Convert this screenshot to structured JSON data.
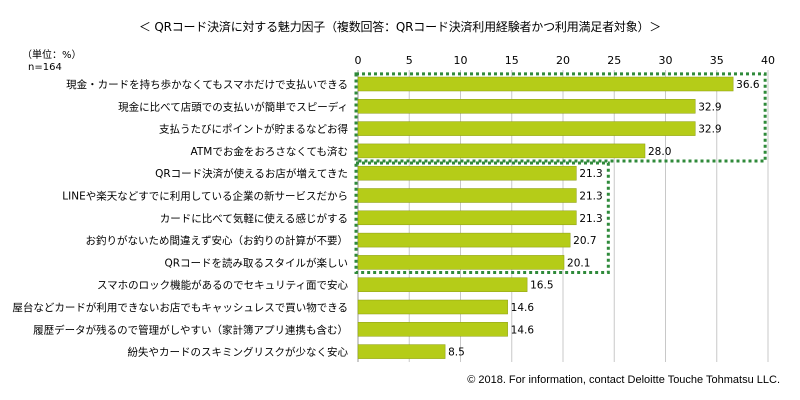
{
  "chart_data": {
    "type": "bar",
    "orientation": "horizontal",
    "title": "＜ QRコード決済に対する魅力因子（複数回答：QRコード決済利用経験者かつ利用満足者対象）＞",
    "unit_label": "（単位：%）",
    "sample_label": "n=164",
    "categories": [
      "現金・カードを持ち歩かなくてもスマホだけで支払いできる",
      "現金に比べて店頭での支払いが簡単でスピーディ",
      "支払うたびにポイントが貯まるなどお得",
      "ATMでお金をおろさなくても済む",
      "QRコード決済が使えるお店が増えてきた",
      "LINEや楽天などすでに利用している企業の新サービスだから",
      "カードに比べて気軽に使える感じがする",
      "お釣りがないため間違えず安心（お釣りの計算が不要）",
      "QRコードを読み取るスタイルが楽しい",
      "スマホのロック機能があるのでセキュリティ面で安心",
      "屋台などカードが利用できないお店でもキャッシュレスで買い物できる",
      "履歴データが残るので管理がしやすい（家計簿アプリ連携も含む）",
      "紛失やカードのスキミングリスクが少なく安心"
    ],
    "values": [
      36.6,
      32.9,
      32.9,
      28.0,
      21.3,
      21.3,
      21.3,
      20.7,
      20.1,
      16.5,
      14.6,
      14.6,
      8.5
    ],
    "value_labels": [
      "36.6",
      "32.9",
      "32.9",
      "28.0",
      "21.3",
      "21.3",
      "21.3",
      "20.7",
      "20.1",
      "16.5",
      "14.6",
      "14.6",
      "8.5"
    ],
    "xlim": [
      0,
      40
    ],
    "x_ticks": [
      0,
      5,
      10,
      15,
      20,
      25,
      30,
      35,
      40
    ],
    "grid": true,
    "highlight_groups": [
      {
        "from_index": 0,
        "to_index": 3
      },
      {
        "from_index": 4,
        "to_index": 8
      }
    ],
    "colors": {
      "bar": "#b5cc18",
      "bar_border": "#8a9c10",
      "grid": "#c8c8c8",
      "highlight": "#2f8a3a"
    }
  },
  "footer": "© 2018. For information, contact Deloitte Touche Tohmatsu LLC."
}
